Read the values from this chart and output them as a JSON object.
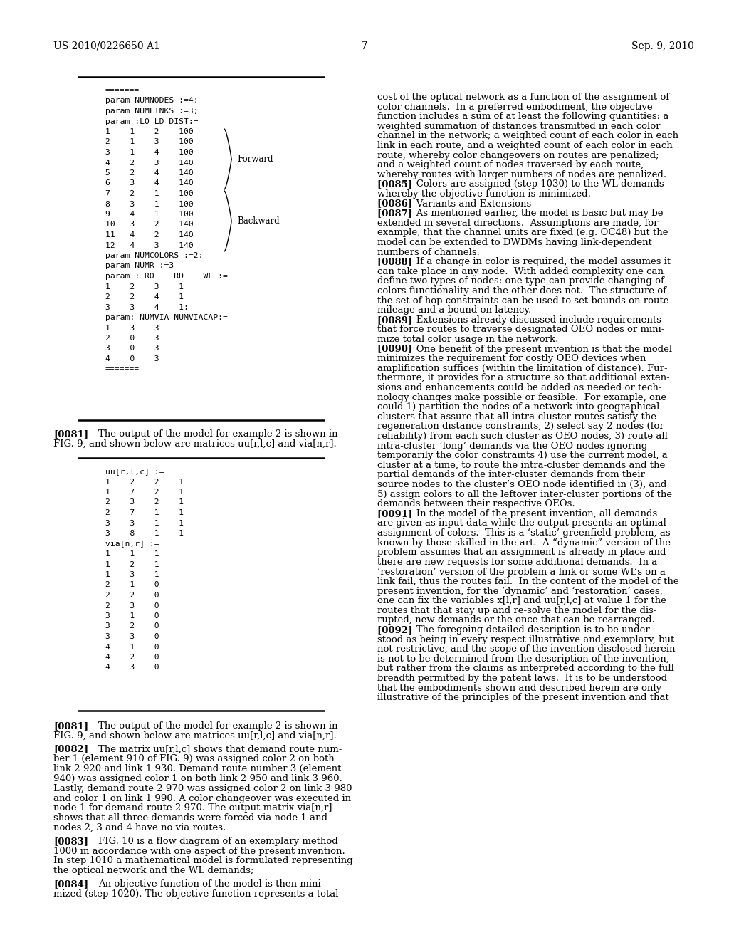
{
  "bg_color": "#ffffff",
  "header_left": "US 2010/0226650 A1",
  "header_right": "Sep. 9, 2010",
  "page_number": "7",
  "top_box_lines": [
    "=======",
    "param NUMNODES :=4;",
    "param NUMLINKS :=3;",
    "param :LO LD DIST:=",
    "1    1    2    100",
    "2    1    3    100",
    "3    1    4    100",
    "4    2    3    140",
    "5    2    4    140",
    "6    3    4    140",
    "7    2    1    100",
    "8    3    1    100",
    "9    4    1    100",
    "10   3    2    140",
    "11   4    2    140",
    "12   4    3    140",
    "param NUMCOLORS :=2;",
    "param NUMR :=3",
    "param : RO    RD    WL :=",
    "1    2    3    1",
    "2    2    4    1",
    "3    3    4    1;",
    "param: NUMVIA NUMVIACAP:=",
    "1    3    3",
    "2    0    3",
    "3    0    3",
    "4    0    3",
    "======="
  ],
  "bottom_box_lines": [
    "uu[r,l,c] :=",
    "1    2    2    1",
    "1    7    2    1",
    "2    3    2    1",
    "2    7    1    1",
    "3    3    1    1",
    "3    8    1    1",
    "via[n,r] :=",
    "1    1    1",
    "1    2    1",
    "1    3    1",
    "2    1    0",
    "2    2    0",
    "2    3    0",
    "3    1    0",
    "3    2    0",
    "3    3    0",
    "4    1    0",
    "4    2    0",
    "4    3    0"
  ],
  "right_col_lines": [
    "cost of the optical network as a function of the assignment of",
    "color channels.  In a preferred embodiment, the objective",
    "function includes a sum of at least the following quantities: a",
    "weighted summation of distances transmitted in each color",
    "channel in the network; a weighted count of each color in each",
    "link in each route, and a weighted count of each color in each",
    "route, whereby color changeovers on routes are penalized;",
    "and a weighted count of nodes traversed by each route,",
    "whereby routes with larger numbers of nodes are penalized.",
    "[0085]    Colors are assigned (step 1030) to the WL demands",
    "whereby the objective function is minimized.",
    "[0086]    Variants and Extensions",
    "[0087]    As mentioned earlier, the model is basic but may be",
    "extended in several directions.  Assumptions are made, for",
    "example, that the channel units are fixed (e.g. OC48) but the",
    "model can be extended to DWDMs having link-dependent",
    "numbers of channels.",
    "[0088]    If a change in color is required, the model assumes it",
    "can take place in any node.  With added complexity one can",
    "define two types of nodes: one type can provide changing of",
    "colors functionality and the other does not.  The structure of",
    "the set of hop constraints can be used to set bounds on route",
    "mileage and a bound on latency.",
    "[0089]    Extensions already discussed include requirements",
    "that force routes to traverse designated OEO nodes or mini-",
    "mize total color usage in the network.",
    "[0090]    One benefit of the present invention is that the model",
    "minimizes the requirement for costly OEO devices when",
    "amplification suffices (within the limitation of distance). Fur-",
    "thermore, it provides for a structure so that additional exten-",
    "sions and enhancements could be added as needed or tech-",
    "nology changes make possible or feasible.  For example, one",
    "could 1) partition the nodes of a network into geographical",
    "clusters that assure that all intra-cluster routes satisfy the",
    "regeneration distance constraints, 2) select say 2 nodes (for",
    "reliability) from each such cluster as OEO nodes, 3) route all",
    "intra-cluster ‘long’ demands via the OEO nodes ignoring",
    "temporarily the color constraints 4) use the current model, a",
    "cluster at a time, to route the intra-cluster demands and the",
    "partial demands of the inter-cluster demands from their",
    "source nodes to the cluster’s OEO node identified in (3), and",
    "5) assign colors to all the leftover inter-cluster portions of the",
    "demands between their respective OEOs.",
    "[0091]    In the model of the present invention, all demands",
    "are given as input data while the output presents an optimal",
    "assignment of colors.  This is a ‘static’ greenfield problem, as",
    "known by those skilled in the art.  A “dynamic” version of the",
    "problem assumes that an assignment is already in place and",
    "there are new requests for some additional demands.  In a",
    "‘restoration’ version of the problem a link or some WL’s on a",
    "link fail, thus the routes fail.  In the content of the model of the",
    "present invention, for the ‘dynamic’ and ‘restoration’ cases,",
    "one can fix the variables x[l,r] and uu[r,l,c] at value 1 for the",
    "routes that that stay up and re-solve the model for the dis-",
    "rupted, new demands or the once that can be rearranged.",
    "[0092]    The foregoing detailed description is to be under-",
    "stood as being in every respect illustrative and exemplary, but",
    "not restrictive, and the scope of the invention disclosed herein",
    "is not to be determined from the description of the invention,",
    "but rather from the claims as interpreted according to the full",
    "breadth permitted by the patent laws.  It is to be understood",
    "that the embodiments shown and described herein are only",
    "illustrative of the principles of the present invention and that"
  ],
  "left_col_paras": [
    {
      "tag": "[0081]",
      "lines": [
        "The output of the model for example 2 is shown in",
        "FIG. 9, and shown below are matrices uu[r,l,c] and via[n,r]."
      ]
    },
    {
      "tag": "[0082]",
      "lines": [
        "The matrix uu[r,l,c] shows that demand route num-",
        "ber 1 (element 910 of FIG. 9) was assigned color 2 on both",
        "link 2 920 and link 1 930. Demand route number 3 (element",
        "940) was assigned color 1 on both link 2 950 and link 3 960.",
        "Lastly, demand route 2 970 was assigned color 2 on link 3 980",
        "and color 1 on link 1 990. A color changeover was executed in",
        "node 1 for demand route 2 970. The output matrix via[n,r]",
        "shows that all three demands were forced via node 1 and",
        "nodes 2, 3 and 4 have no via routes."
      ]
    },
    {
      "tag": "[0083]",
      "lines": [
        "FIG. 10 is a flow diagram of an exemplary method",
        "1000 in accordance with one aspect of the present invention.",
        "In step 1010 a mathematical model is formulated representing",
        "the optical network and the WL demands;"
      ]
    },
    {
      "tag": "[0084]",
      "lines": [
        "An objective function of the model is then mini-",
        "mized (step 1020). The objective function represents a total"
      ]
    }
  ]
}
